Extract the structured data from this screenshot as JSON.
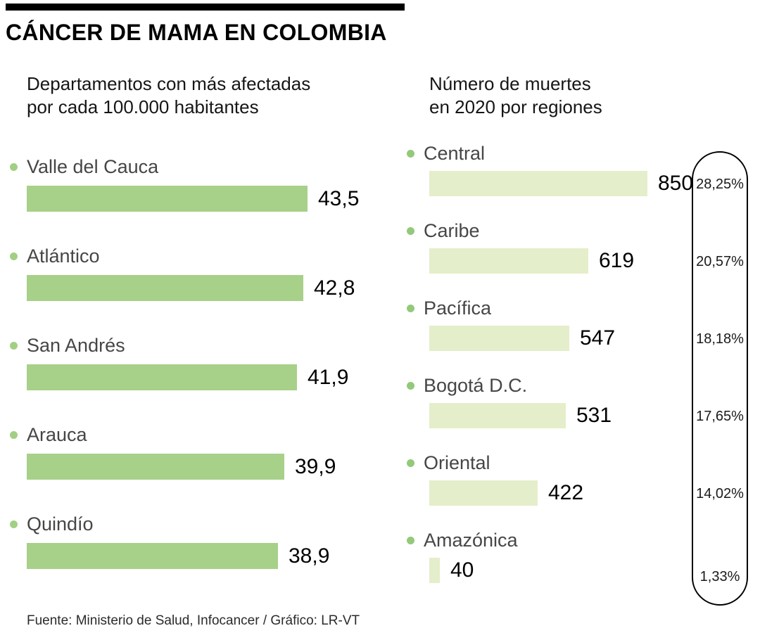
{
  "header": {
    "title": "CÁNCER DE MAMA EN COLOMBIA"
  },
  "footer": {
    "source": "Fuente: Ministerio de Salud, Infocancer / Gráfico: LR-VT"
  },
  "chart_data": [
    {
      "type": "bar",
      "orientation": "horizontal",
      "title": "Departamentos con más afectadas por cada 100.000 habitantes",
      "title_lines": [
        "Departamentos con más afectadas",
        "por cada 100.000 habitantes"
      ],
      "categories": [
        "Valle del Cauca",
        "Atlántico",
        "San Andrés",
        "Arauca",
        "Quindío"
      ],
      "values": [
        43.5,
        42.8,
        41.9,
        39.9,
        38.9
      ],
      "value_labels": [
        "43,5",
        "42,8",
        "41,9",
        "39,9",
        "38,9"
      ],
      "bar_color": "#a7d089",
      "bullet_color": "#a3cf84",
      "grid": false,
      "legend": false
    },
    {
      "type": "bar",
      "orientation": "horizontal",
      "title": "Número de muertes en 2020 por regiones",
      "title_lines": [
        "Número de muertes",
        "en 2020 por regiones"
      ],
      "categories": [
        "Central",
        "Caribe",
        "Pacífica",
        "Bogotá D.C.",
        "Oriental",
        "Amazónica"
      ],
      "values": [
        850,
        619,
        547,
        531,
        422,
        40
      ],
      "value_labels": [
        "850",
        "619",
        "547",
        "531",
        "422",
        "40"
      ],
      "percent_labels": [
        "28,25%",
        "20,57%",
        "18,18%",
        "17,65%",
        "14,02%",
        "1,33%"
      ],
      "bar_color": "#e4eeca",
      "bullet_color": "#93c97b",
      "grid": false,
      "legend": false
    }
  ]
}
